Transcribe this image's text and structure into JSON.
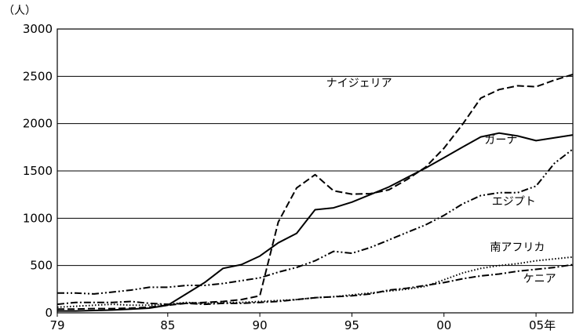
{
  "chart_data": {
    "type": "line",
    "title": "",
    "xlabel": "",
    "ylabel": "",
    "y_unit_label": "（人）",
    "xlim": [
      1979,
      2007
    ],
    "ylim": [
      0,
      3000
    ],
    "grid": "horizontal",
    "x_ticks": [
      {
        "value": 1979,
        "label": "79"
      },
      {
        "value": 1985,
        "label": "85"
      },
      {
        "value": 1990,
        "label": "90"
      },
      {
        "value": 1995,
        "label": "95"
      },
      {
        "value": 2000,
        "label": "00"
      },
      {
        "value": 2005,
        "label": "05年"
      }
    ],
    "y_ticks": [
      {
        "value": 0,
        "label": "0"
      },
      {
        "value": 500,
        "label": "500"
      },
      {
        "value": 1000,
        "label": "1000"
      },
      {
        "value": 1500,
        "label": "1500"
      },
      {
        "value": 2000,
        "label": "2000"
      },
      {
        "value": 2500,
        "label": "2500"
      },
      {
        "value": 3000,
        "label": "3000"
      }
    ],
    "x": [
      1979,
      1980,
      1981,
      1982,
      1983,
      1984,
      1985,
      1986,
      1987,
      1988,
      1989,
      1990,
      1991,
      1992,
      1993,
      1994,
      1995,
      1996,
      1997,
      1998,
      1999,
      2000,
      2001,
      2002,
      2003,
      2004,
      2005,
      2006,
      2007
    ],
    "series": [
      {
        "name": "ナイジェリア",
        "dash": "dash",
        "label_x": 1993.6,
        "label_y": 2390,
        "values": [
          40,
          40,
          45,
          45,
          50,
          60,
          80,
          100,
          110,
          120,
          140,
          180,
          960,
          1320,
          1460,
          1290,
          1255,
          1260,
          1300,
          1410,
          1540,
          1740,
          1990,
          2270,
          2360,
          2400,
          2390,
          2460,
          2520
        ]
      },
      {
        "name": "ガーナ",
        "dash": "solid",
        "label_x": 2002.2,
        "label_y": 1790,
        "values": [
          20,
          20,
          25,
          30,
          40,
          50,
          80,
          200,
          320,
          470,
          510,
          600,
          740,
          840,
          1090,
          1110,
          1170,
          1250,
          1330,
          1430,
          1530,
          1640,
          1750,
          1860,
          1900,
          1870,
          1820,
          1850,
          1880
        ]
      },
      {
        "name": "エジプト",
        "dash": "dashdotdot",
        "label_x": 2002.6,
        "label_y": 1140,
        "values": [
          210,
          210,
          200,
          220,
          240,
          270,
          270,
          290,
          290,
          310,
          340,
          370,
          430,
          480,
          550,
          650,
          630,
          690,
          770,
          850,
          930,
          1030,
          1150,
          1240,
          1270,
          1270,
          1340,
          1580,
          1730
        ]
      },
      {
        "name": "南アフリカ",
        "dash": "dot",
        "label_x": 2002.5,
        "label_y": 655,
        "values": [
          60,
          70,
          80,
          90,
          80,
          80,
          90,
          110,
          100,
          110,
          110,
          120,
          130,
          140,
          160,
          170,
          190,
          210,
          230,
          250,
          280,
          350,
          420,
          470,
          500,
          520,
          550,
          570,
          590
        ]
      },
      {
        "name": "ケニア",
        "dash": "dashdot",
        "label_x": 2004.3,
        "label_y": 325,
        "values": [
          90,
          110,
          110,
          110,
          120,
          100,
          90,
          100,
          90,
          100,
          100,
          110,
          120,
          140,
          160,
          170,
          180,
          200,
          240,
          260,
          290,
          320,
          360,
          390,
          410,
          440,
          460,
          480,
          510
        ]
      }
    ]
  }
}
